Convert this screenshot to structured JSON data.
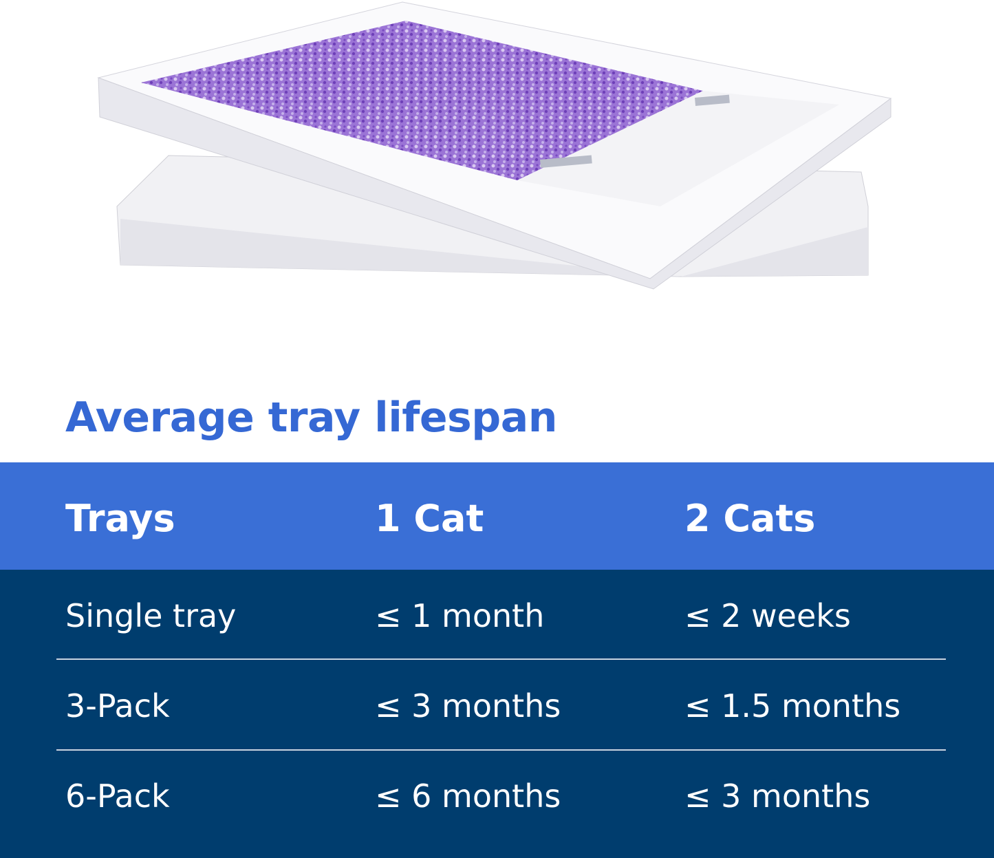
{
  "title": "Average tray lifespan",
  "colors": {
    "title": "#3568d4",
    "header_bg": "#3a6fd6",
    "body_bg": "#003d6e",
    "litter": "#8a5cc8"
  },
  "table": {
    "headers": [
      "Trays",
      "1 Cat",
      "2 Cats"
    ],
    "rows": [
      [
        "Single tray",
        "≤ 1 month",
        "≤ 2 weeks"
      ],
      [
        "3-Pack",
        "≤ 3 months",
        "≤ 1.5 months"
      ],
      [
        "6-Pack",
        "≤ 6 months",
        "≤ 3 months"
      ]
    ]
  }
}
